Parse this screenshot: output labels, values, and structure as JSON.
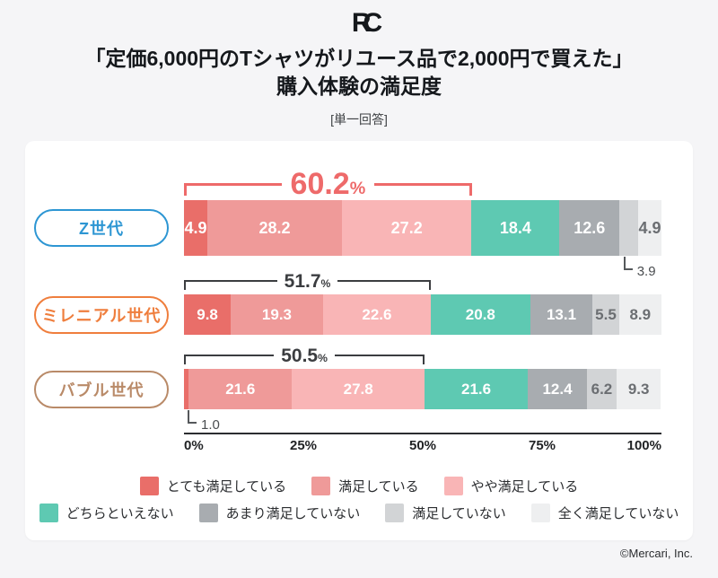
{
  "header": {
    "logo_text": "RC",
    "title_line1": "「定価6,000円のTシャツがリユース品で2,000円で買えた」",
    "title_line2": "購入体験の満足度",
    "answer_type_note": "[単一回答]"
  },
  "footer": {
    "copyright": "©Mercari, Inc."
  },
  "style": {
    "accent_red": "#ee6a6a",
    "bracket_dark": "#3b3d40",
    "inside_label_light": "#ffffff",
    "inside_label_dark": "#6b6e72",
    "callout_gray": "#55585b"
  },
  "chart_data": {
    "type": "bar",
    "stacked": true,
    "orientation": "horizontal",
    "unit": "%",
    "xlim": [
      0,
      100
    ],
    "x_ticks": [
      {
        "value": 0,
        "label": "0%"
      },
      {
        "value": 25,
        "label": "25%"
      },
      {
        "value": 50,
        "label": "50%"
      },
      {
        "value": 75,
        "label": "75%"
      },
      {
        "value": 100,
        "label": "100%"
      }
    ],
    "categories": [
      "Z世代",
      "ミレニアル世代",
      "バブル世代"
    ],
    "category_colors": [
      "#2d96d3",
      "#ef7e3d",
      "#b98a68"
    ],
    "series": [
      {
        "name": "とても満足している",
        "color": "#e96e69",
        "values": [
          4.9,
          9.8,
          1.0
        ]
      },
      {
        "name": "満足している",
        "color": "#ef9a99",
        "values": [
          28.2,
          19.3,
          21.6
        ]
      },
      {
        "name": "やや満足している",
        "color": "#f9b5b6",
        "values": [
          27.2,
          22.6,
          27.8
        ]
      },
      {
        "name": "どちらといえない",
        "color": "#5ec9b2",
        "values": [
          18.4,
          20.8,
          21.6
        ]
      },
      {
        "name": "あまり満足していない",
        "color": "#a8acb0",
        "values": [
          12.6,
          13.1,
          12.4
        ]
      },
      {
        "name": "満足していない",
        "color": "#d2d4d6",
        "values": [
          3.9,
          5.5,
          6.2
        ]
      },
      {
        "name": "全く満足していない",
        "color": "#eeeff0",
        "values": [
          4.9,
          8.9,
          9.3
        ]
      }
    ],
    "satisfied_totals": [
      {
        "label": "60.2",
        "suffix": "%",
        "emphasized": true
      },
      {
        "label": "51.7",
        "suffix": "%",
        "emphasized": false
      },
      {
        "label": "50.5",
        "suffix": "%",
        "emphasized": false
      }
    ],
    "outside_callouts": [
      {
        "row": 0,
        "series": 5,
        "label": "3.9"
      },
      {
        "row": 2,
        "series": 0,
        "label": "1.0"
      }
    ],
    "hide_inside_labels": [
      [
        0,
        5
      ],
      [
        2,
        0
      ]
    ],
    "legend_rows": [
      [
        0,
        1,
        2
      ],
      [
        3,
        4,
        5,
        6
      ]
    ]
  }
}
